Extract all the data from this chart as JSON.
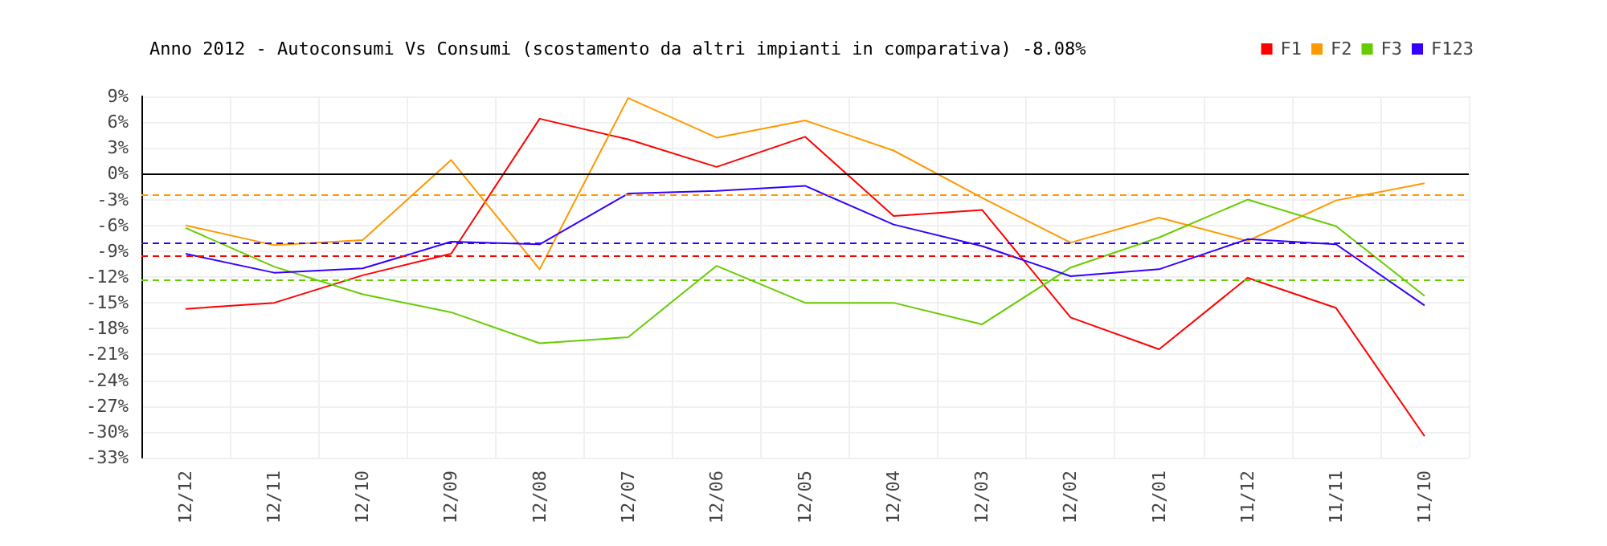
{
  "chart_data": {
    "type": "line",
    "title": "Anno 2012 - Autoconsumi Vs Consumi (scostamento da altri impianti in comparativa) -8.08%",
    "categories": [
      "12/12",
      "12/11",
      "12/10",
      "12/09",
      "12/08",
      "12/07",
      "12/06",
      "12/05",
      "12/04",
      "12/03",
      "12/02",
      "12/01",
      "11/12",
      "11/11",
      "11/10"
    ],
    "series": [
      {
        "name": "F1",
        "color": "#ff0000",
        "values": [
          -15.7,
          -15.0,
          -11.8,
          -9.3,
          6.4,
          4.0,
          0.8,
          4.3,
          -4.9,
          -4.2,
          -16.7,
          -20.4,
          -12.1,
          -15.6,
          -30.5
        ]
      },
      {
        "name": "F2",
        "color": "#ff9900",
        "values": [
          -6.0,
          -8.3,
          -7.7,
          1.6,
          -11.1,
          8.8,
          4.2,
          6.2,
          2.7,
          -2.8,
          -8.0,
          -5.1,
          -7.8,
          -3.1,
          -1.1
        ]
      },
      {
        "name": "F3",
        "color": "#66cc00",
        "values": [
          -6.3,
          -10.8,
          -14.0,
          -16.1,
          -19.7,
          -19.0,
          -10.7,
          -15.0,
          -15.0,
          -17.5,
          -10.9,
          -7.4,
          -3.0,
          -6.1,
          -14.2
        ]
      },
      {
        "name": "F123",
        "color": "#3300ff",
        "values": [
          -9.3,
          -11.5,
          -11.0,
          -7.9,
          -8.2,
          -2.3,
          -2.0,
          -1.4,
          -5.9,
          -8.4,
          -11.9,
          -11.1,
          -7.6,
          -8.2,
          -15.3
        ]
      }
    ],
    "ref_lines": [
      {
        "axis": "y",
        "value": 0,
        "color": "#000000",
        "line_style": "solid"
      },
      {
        "axis": "y",
        "value": -2.5,
        "color": "#ff9900",
        "line_style": "dashed"
      },
      {
        "axis": "y",
        "value": -8.0,
        "color": "#3300ff",
        "line_style": "dashed"
      },
      {
        "axis": "y",
        "value": -9.5,
        "color": "#ff0000",
        "line_style": "dashed"
      },
      {
        "axis": "y",
        "value": -12.4,
        "color": "#66cc00",
        "line_style": "dashed"
      }
    ],
    "ylim": [
      -33,
      9
    ],
    "yticks": [
      {
        "value": 9,
        "label": "9%"
      },
      {
        "value": 6,
        "label": "6%"
      },
      {
        "value": 3,
        "label": "3%"
      },
      {
        "value": 0,
        "label": "0%"
      },
      {
        "value": -3,
        "label": "-3%"
      },
      {
        "value": -6,
        "label": "-6%"
      },
      {
        "value": -9,
        "label": "-9%"
      },
      {
        "value": -12,
        "label": "-12%"
      },
      {
        "value": -15,
        "label": "-15%"
      },
      {
        "value": -18,
        "label": "-18%"
      },
      {
        "value": -21,
        "label": "-21%"
      },
      {
        "value": -24,
        "label": "-24%"
      },
      {
        "value": -27,
        "label": "-27%"
      },
      {
        "value": -30,
        "label": "-30%"
      },
      {
        "value": -33,
        "label": "-33%"
      }
    ],
    "grid": true,
    "legend": "top right",
    "marker": "none",
    "line_style": "solid"
  }
}
